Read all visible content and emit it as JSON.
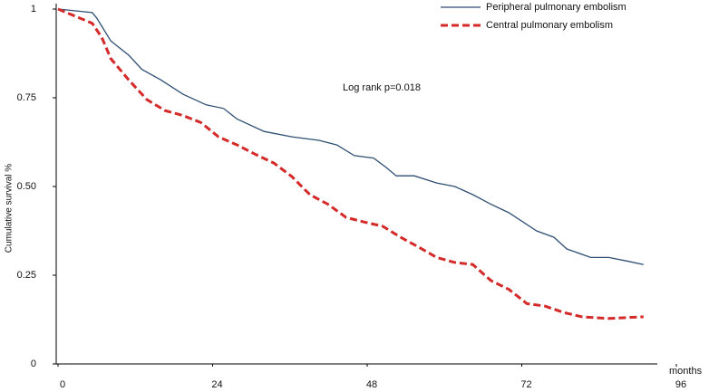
{
  "chart_data": {
    "type": "line",
    "annotation": "Log rank p=0.018",
    "y_label": "Cumulative survival %",
    "x_label": "months",
    "xlim": [
      0,
      96
    ],
    "xticks": [
      0,
      24,
      48,
      72,
      96
    ],
    "ylim": [
      0,
      1
    ],
    "yticks": [
      0,
      0.25,
      {
        "value": 0.5,
        "label": "0.50"
      },
      0.75,
      1
    ],
    "legend": "top-right",
    "series": [
      {
        "name": "Peripheral  pulmonary  embolism",
        "color": "#2f4f73",
        "dash": "solid",
        "x": [
          0,
          5.3,
          6,
          8.2,
          11,
          13,
          16,
          19.4,
          23,
          25.7,
          27.8,
          32,
          36.3,
          40.5,
          43.3,
          46,
          49,
          51,
          52.5,
          55.3,
          58.8,
          61.6,
          64.4,
          67.2,
          70,
          74.3,
          77,
          79,
          82.7,
          85.5,
          88.3,
          90.9
        ],
        "values": [
          1.0,
          0.99,
          0.975,
          0.91,
          0.87,
          0.83,
          0.8,
          0.76,
          0.73,
          0.72,
          0.69,
          0.655,
          0.64,
          0.63,
          0.617,
          0.587,
          0.58,
          0.553,
          0.53,
          0.53,
          0.51,
          0.5,
          0.477,
          0.45,
          0.426,
          0.375,
          0.357,
          0.324,
          0.3,
          0.3,
          0.29,
          0.28
        ]
      },
      {
        "name": "Central  pulmonary  embolism",
        "color": "#d42a2a",
        "dash": "dashed",
        "x": [
          0,
          5.3,
          6.8,
          8.2,
          11,
          13.8,
          16.6,
          19.4,
          22.2,
          24.9,
          27.8,
          30.7,
          33.5,
          36.3,
          39.1,
          41.9,
          44.7,
          47.5,
          50.4,
          53.2,
          55.9,
          58.8,
          61.6,
          64.4,
          67.2,
          70,
          72.8,
          75.6,
          78.5,
          81.3,
          85.5,
          90.9
        ],
        "values": [
          1.0,
          0.96,
          0.92,
          0.86,
          0.8,
          0.745,
          0.714,
          0.7,
          0.68,
          0.64,
          0.617,
          0.59,
          0.566,
          0.528,
          0.477,
          0.45,
          0.413,
          0.4,
          0.388,
          0.357,
          0.33,
          0.3,
          0.286,
          0.28,
          0.235,
          0.21,
          0.17,
          0.163,
          0.145,
          0.133,
          0.128,
          0.133
        ]
      }
    ]
  }
}
